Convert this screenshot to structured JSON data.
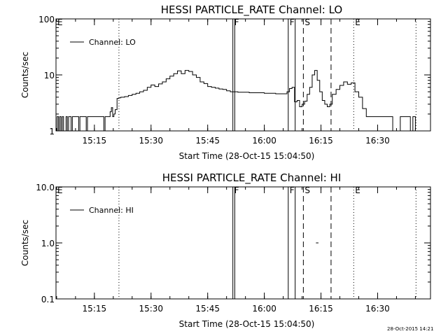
{
  "stamp": "28-Oct-2015 14:21",
  "chart_data": [
    {
      "type": "line",
      "title": "HESSI PARTICLE_RATE Channel: LO",
      "xlabel": "Start Time (28-Oct-15 15:04:50)",
      "ylabel": "Counts/sec",
      "yscale": "log",
      "ylim": [
        1,
        100
      ],
      "xlim": [
        "15:04:50",
        "16:44:00"
      ],
      "xticks": [
        "15:15",
        "15:30",
        "15:45",
        "16:00",
        "16:15",
        "16:30"
      ],
      "yticks": [
        "1",
        "10",
        "100"
      ],
      "legend": "top-left",
      "series": [
        {
          "name": "Channel: LO",
          "x": [
            "15:04:50",
            "15:05:10",
            "15:05:30",
            "15:05:50",
            "15:06:10",
            "15:06:30",
            "15:06:50",
            "15:07:10",
            "15:07:30",
            "15:07:50",
            "15:08:10",
            "15:08:30",
            "15:08:50",
            "15:09:10",
            "15:09:30",
            "15:09:50",
            "15:10:10",
            "15:10:30",
            "15:10:50",
            "15:11:10",
            "15:11:30",
            "15:11:50",
            "15:12:10",
            "15:12:30",
            "15:12:50",
            "15:13:10",
            "15:13:30",
            "15:13:50",
            "15:14:10",
            "15:14:30",
            "15:14:50",
            "15:15:10",
            "15:15:30",
            "15:15:50",
            "15:16:10",
            "15:16:30",
            "15:16:50",
            "15:17:10",
            "15:17:30",
            "15:17:50",
            "15:18:10",
            "15:18:30",
            "15:18:50",
            "15:19:10",
            "15:19:30",
            "15:19:50",
            "15:20:10",
            "15:20:30",
            "15:21:00",
            "15:21:30",
            "15:22:00",
            "15:23:00",
            "15:24:00",
            "15:25:00",
            "15:26:00",
            "15:27:00",
            "15:28:00",
            "15:29:00",
            "15:30:00",
            "15:31:00",
            "15:32:00",
            "15:33:00",
            "15:34:00",
            "15:35:00",
            "15:36:00",
            "15:37:00",
            "15:38:00",
            "15:39:00",
            "15:40:00",
            "15:41:00",
            "15:42:00",
            "15:43:00",
            "15:44:00",
            "15:45:00",
            "15:46:00",
            "15:47:00",
            "15:48:00",
            "15:49:00",
            "15:50:00",
            "15:51:00",
            "15:52:00",
            "15:53:00",
            "15:54:00",
            "15:55:00",
            "15:56:00",
            "15:57:00",
            "15:58:00",
            "15:59:00",
            "16:00:00",
            "16:01:00",
            "16:02:00",
            "16:03:00",
            "16:04:00",
            "16:05:00",
            "16:06:00",
            "16:06:40",
            "16:07:20",
            "16:08:00",
            "16:08:40",
            "16:09:20",
            "16:10:00",
            "16:10:40",
            "16:11:20",
            "16:12:00",
            "16:12:40",
            "16:13:20",
            "16:14:00",
            "16:14:40",
            "16:15:20",
            "16:16:00",
            "16:16:40",
            "16:17:20",
            "16:18:00",
            "16:19:00",
            "16:20:00",
            "16:21:00",
            "16:22:00",
            "16:23:00",
            "16:24:00",
            "16:25:00",
            "16:26:00",
            "16:27:00",
            "16:28:00",
            "16:29:00",
            "16:30:00",
            "16:31:00",
            "16:32:00",
            "16:33:00",
            "16:34:00",
            "16:35:00",
            "16:36:00",
            "16:37:00",
            "16:38:00",
            "16:38:40",
            "16:39:20",
            "16:40:00"
          ],
          "values": [
            1,
            1.8,
            1,
            1.8,
            1,
            1.8,
            1,
            1,
            1.8,
            1,
            1.8,
            1.8,
            1,
            1.8,
            1.8,
            1.8,
            1.8,
            1.8,
            1,
            1.8,
            1.8,
            1.8,
            1.8,
            1.8,
            1,
            1.8,
            1.8,
            1.8,
            1.8,
            1.8,
            1.8,
            1.8,
            1.8,
            1.8,
            1.8,
            1.8,
            1.8,
            1.8,
            1,
            1.8,
            1.8,
            1.8,
            1.8,
            2.2,
            2.6,
            1.8,
            2,
            2.4,
            3.8,
            3.9,
            4,
            4.1,
            4.3,
            4.5,
            4.7,
            5,
            5.3,
            6,
            6.6,
            6.2,
            6.9,
            7.5,
            8.5,
            9.5,
            10.5,
            11.8,
            10.5,
            12,
            11.5,
            10,
            9,
            7.5,
            7,
            6.2,
            6,
            5.8,
            5.6,
            5.5,
            5.2,
            5,
            5,
            4.9,
            4.9,
            4.9,
            4.8,
            4.8,
            4.8,
            4.8,
            4.7,
            4.7,
            4.7,
            4.6,
            4.6,
            4.6,
            5,
            5.7,
            6,
            3.3,
            3.5,
            2.7,
            3,
            3.4,
            4.5,
            6,
            10,
            12,
            8,
            5,
            3.5,
            3,
            2.7,
            3,
            4.5,
            5.5,
            6.5,
            7.5,
            6.8,
            7.2,
            5,
            4,
            2.5,
            1.8,
            1.8,
            1.8,
            1.8,
            1.8,
            1.8,
            1.8,
            1,
            1,
            1.8,
            1.8,
            1.8,
            1,
            1.8,
            1
          ]
        }
      ],
      "flags": [
        {
          "label": "E",
          "time": "15:04:50",
          "style": "dotted"
        },
        {
          "label": "",
          "time": "15:21:30",
          "style": "dotted"
        },
        {
          "label": "F",
          "time": "15:51:40",
          "style": "solid"
        },
        {
          "label": "",
          "time": "15:52:10",
          "style": "solid"
        },
        {
          "label": "F",
          "time": "16:06:20",
          "style": "solid"
        },
        {
          "label": "",
          "time": "16:08:10",
          "style": "solid"
        },
        {
          "label": "S",
          "time": "16:10:20",
          "style": "dashed"
        },
        {
          "label": "",
          "time": "16:17:40",
          "style": "dashed"
        },
        {
          "label": "E",
          "time": "16:23:40",
          "style": "dotted"
        },
        {
          "label": "",
          "time": "16:40:10",
          "style": "dotted"
        }
      ]
    },
    {
      "type": "line",
      "title": "HESSI PARTICLE_RATE Channel: HI",
      "xlabel": "Start Time (28-Oct-15 15:04:50)",
      "ylabel": "Counts/sec",
      "yscale": "log",
      "ylim": [
        0.1,
        10
      ],
      "xlim": [
        "15:04:50",
        "16:44:00"
      ],
      "xticks": [
        "15:15",
        "15:30",
        "15:45",
        "16:00",
        "16:15",
        "16:30"
      ],
      "yticks": [
        "0.1",
        "1.0",
        "10.0"
      ],
      "legend": "top-left",
      "series": [
        {
          "name": "Channel: HI",
          "x": [
            "16:13:40",
            "16:14:20"
          ],
          "values": [
            1.0,
            1.0
          ]
        }
      ],
      "flags": [
        {
          "label": "E",
          "time": "15:04:50",
          "style": "dotted"
        },
        {
          "label": "",
          "time": "15:21:30",
          "style": "dotted"
        },
        {
          "label": "F",
          "time": "15:51:40",
          "style": "solid"
        },
        {
          "label": "",
          "time": "15:52:10",
          "style": "solid"
        },
        {
          "label": "F",
          "time": "16:06:20",
          "style": "solid"
        },
        {
          "label": "",
          "time": "16:08:10",
          "style": "solid"
        },
        {
          "label": "S",
          "time": "16:10:20",
          "style": "dashed"
        },
        {
          "label": "",
          "time": "16:17:40",
          "style": "dashed"
        },
        {
          "label": "E",
          "time": "16:23:40",
          "style": "dotted"
        },
        {
          "label": "",
          "time": "16:40:10",
          "style": "dotted"
        }
      ]
    }
  ]
}
